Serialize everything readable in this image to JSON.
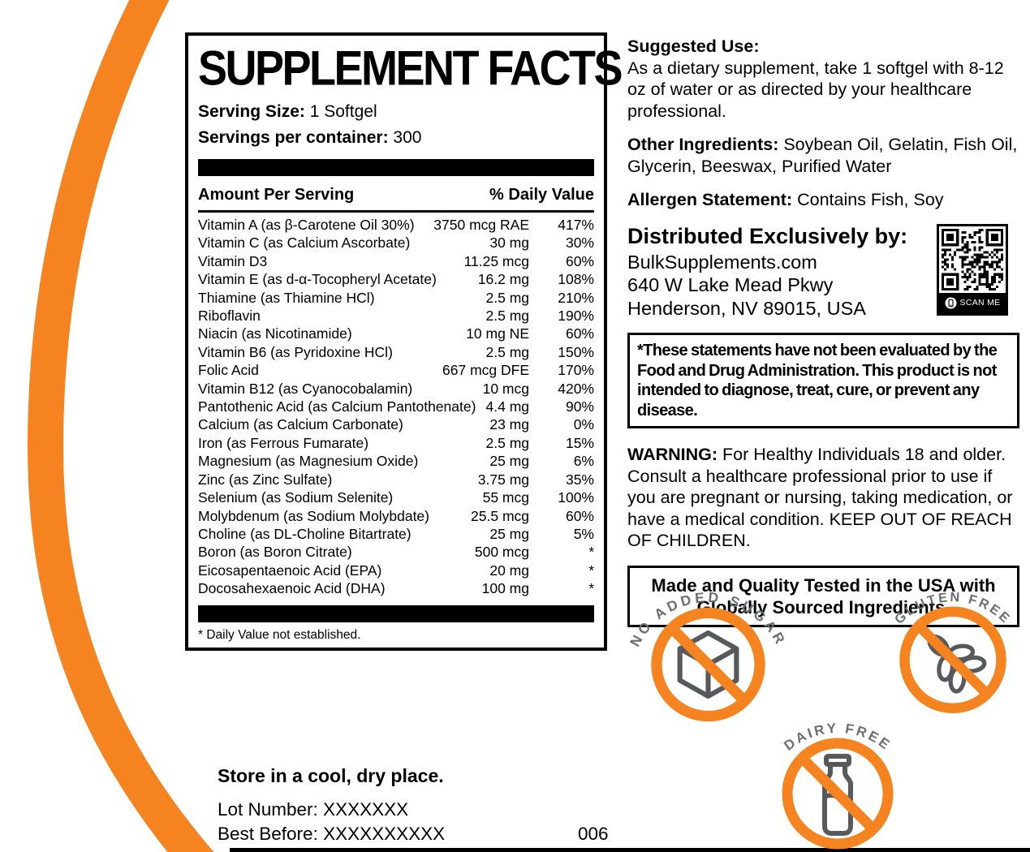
{
  "colors": {
    "orange": "#F5831F",
    "badge_text_gray": "#6D6E71",
    "icon_gray": "#58595B",
    "black": "#000000"
  },
  "supplement_facts": {
    "title": "SUPPLEMENT FACTS",
    "serving_size_label": "Serving Size:",
    "serving_size_value": "1 Softgel",
    "servings_label": "Servings per container:",
    "servings_value": "300",
    "column_left": "Amount Per Serving",
    "column_right": "% Daily Value",
    "rows": [
      {
        "name": "Vitamin A (as β-Carotene Oil 30%)",
        "amount": "3750 mcg RAE",
        "dv": "417%"
      },
      {
        "name": "Vitamin C (as Calcium Ascorbate)",
        "amount": "30 mg",
        "dv": "30%"
      },
      {
        "name": "Vitamin D3",
        "amount": "11.25 mcg",
        "dv": "60%"
      },
      {
        "name": "Vitamin E (as d-α-Tocopheryl Acetate)",
        "amount": "16.2 mg",
        "dv": "108%"
      },
      {
        "name": "Thiamine (as Thiamine HCl)",
        "amount": "2.5 mg",
        "dv": "210%"
      },
      {
        "name": "Riboflavin",
        "amount": "2.5 mg",
        "dv": "190%"
      },
      {
        "name": "Niacin (as Nicotinamide)",
        "amount": "10 mg NE",
        "dv": "60%"
      },
      {
        "name": "Vitamin B6 (as Pyridoxine HCl)",
        "amount": "2.5 mg",
        "dv": "150%"
      },
      {
        "name": "Folic Acid",
        "amount": "667 mcg DFE",
        "dv": "170%"
      },
      {
        "name": "Vitamin B12 (as Cyanocobalamin)",
        "amount": "10 mcg",
        "dv": "420%"
      },
      {
        "name": "Pantothenic Acid (as Calcium Pantothenate)",
        "amount": "4.4 mg",
        "dv": "90%"
      },
      {
        "name": "Calcium (as Calcium Carbonate)",
        "amount": "23 mg",
        "dv": "0%"
      },
      {
        "name": "Iron (as Ferrous Fumarate)",
        "amount": "2.5 mg",
        "dv": "15%"
      },
      {
        "name": "Magnesium (as Magnesium Oxide)",
        "amount": "25 mg",
        "dv": "6%"
      },
      {
        "name": "Zinc (as Zinc Sulfate)",
        "amount": "3.75 mg",
        "dv": "35%"
      },
      {
        "name": "Selenium (as Sodium Selenite)",
        "amount": "55 mcg",
        "dv": "100%"
      },
      {
        "name": "Molybdenum (as Sodium Molybdate)",
        "amount": "25.5 mcg",
        "dv": "60%"
      },
      {
        "name": "Choline (as DL-Choline Bitartrate)",
        "amount": "25 mg",
        "dv": "5%"
      },
      {
        "name": "Boron (as Boron Citrate)",
        "amount": "500 mcg",
        "dv": "*"
      },
      {
        "name": "Eicosapentaenoic Acid (EPA)",
        "amount": "20 mg",
        "dv": "*"
      },
      {
        "name": "Docosahexaenoic Acid (DHA)",
        "amount": "100 mg",
        "dv": "*"
      }
    ],
    "footnote": "* Daily Value not established."
  },
  "right_column": {
    "suggested_use_label": "Suggested Use:",
    "suggested_use_text": "As a dietary supplement, take 1 softgel with 8-12 oz of water or as directed by your healthcare professional.",
    "other_ingredients_label": "Other Ingredients:",
    "other_ingredients_text": " Soybean Oil, Gelatin, Fish Oil, Glycerin, Beeswax, Purified Water",
    "allergen_label": "Allergen Statement:",
    "allergen_text": " Contains Fish, Soy",
    "distributor_label": "Distributed Exclusively by:",
    "distributor_line1": "BulkSupplements.com",
    "distributor_line2": "640 W Lake Mead Pkwy",
    "distributor_line3": "Henderson, NV 89015, USA",
    "qr_scan_label": "SCAN ME",
    "disclaimer": "*These statements have not been evaluated by the Food and Drug Administration. This product is not intended to diagnose, treat, cure, or prevent any disease.",
    "warning_label": "WARNING:",
    "warning_text": " For Healthy Individuals 18 and older. Consult a healthcare professional prior to use if you are pregnant or nursing, taking medication, or have a medical condition. KEEP OUT OF REACH OF CHILDREN.",
    "made_in_usa": "Made and Quality Tested in the USA with Globally Sourced Ingredients."
  },
  "badges": [
    {
      "id": "no-added-sugar",
      "label": "NO ADDED SUGAR",
      "icon": "sugar-cube-icon"
    },
    {
      "id": "gluten-free",
      "label": "GLUTEN FREE",
      "icon": "wheat-icon"
    },
    {
      "id": "dairy-free",
      "label": "DAIRY FREE",
      "icon": "milk-bottle-icon"
    }
  ],
  "storage": {
    "store_text": "Store in a cool, dry place.",
    "lot_text": "Lot Number: XXXXXXX",
    "best_before_text": "Best Before: XXXXXXXXXX",
    "code": "006"
  }
}
